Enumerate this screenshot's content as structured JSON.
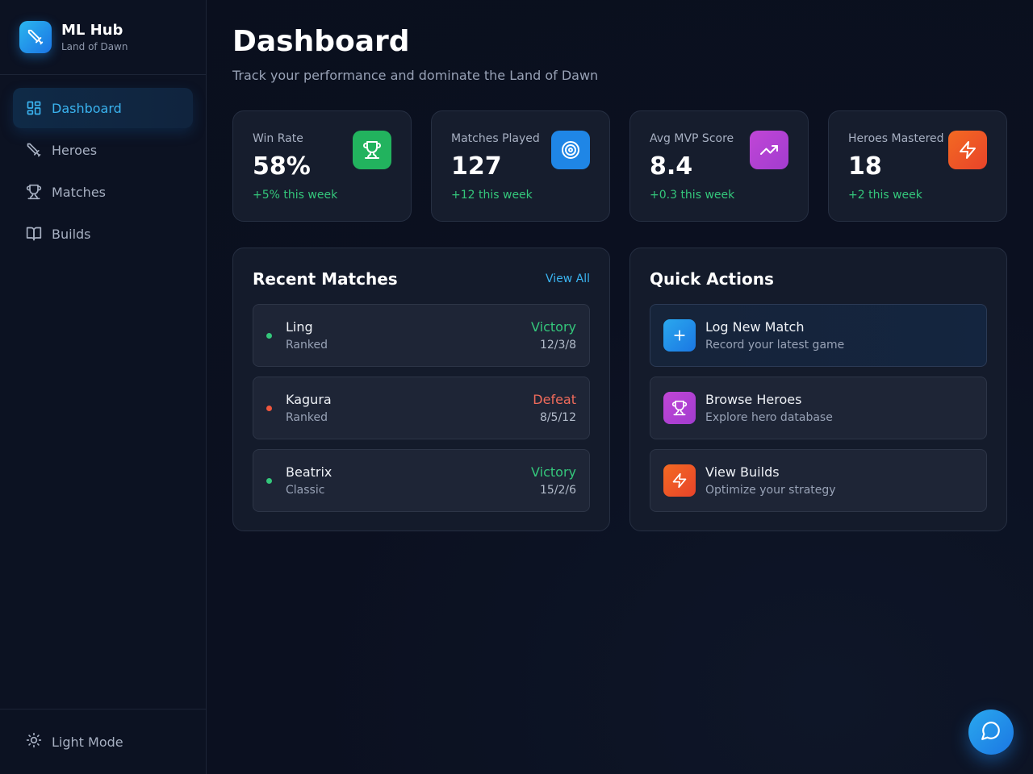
{
  "brand": {
    "name": "ML Hub",
    "subtitle": "Land of Dawn",
    "icon": "sword-icon"
  },
  "sidebar": {
    "items": [
      {
        "label": "Dashboard",
        "icon": "dashboard-grid-icon",
        "active": true
      },
      {
        "label": "Heroes",
        "icon": "sword-icon",
        "active": false
      },
      {
        "label": "Matches",
        "icon": "trophy-icon",
        "active": false
      },
      {
        "label": "Builds",
        "icon": "book-icon",
        "active": false
      }
    ],
    "theme_toggle": {
      "label": "Light Mode",
      "icon": "sun-icon"
    }
  },
  "header": {
    "title": "Dashboard",
    "subtitle": "Track your performance and dominate the Land of Dawn"
  },
  "stats": [
    {
      "label": "Win Rate",
      "value": "58%",
      "delta": "+5% this week",
      "icon": "trophy-icon",
      "color": "#22b35e"
    },
    {
      "label": "Matches Played",
      "value": "127",
      "delta": "+12 this week",
      "icon": "target-icon",
      "color": "#1f86e6"
    },
    {
      "label": "Avg MVP Score",
      "value": "8.4",
      "delta": "+0.3 this week",
      "icon": "trending-up-icon",
      "color": "#b43fd1"
    },
    {
      "label": "Heroes Mastered",
      "value": "18",
      "delta": "+2 this week",
      "icon": "lightning-icon",
      "color": "#ef5522"
    }
  ],
  "recent_matches": {
    "title": "Recent Matches",
    "view_all": "View All",
    "items": [
      {
        "hero": "Ling",
        "mode": "Ranked",
        "result": "Victory",
        "kda": "12/3/8",
        "result_color": "#34c77b"
      },
      {
        "hero": "Kagura",
        "mode": "Ranked",
        "result": "Defeat",
        "kda": "8/5/12",
        "result_color": "#f06b5b"
      },
      {
        "hero": "Beatrix",
        "mode": "Classic",
        "result": "Victory",
        "kda": "15/2/6",
        "result_color": "#34c77b"
      }
    ]
  },
  "quick_actions": {
    "title": "Quick Actions",
    "items": [
      {
        "title": "Log New Match",
        "subtitle": "Record your latest game",
        "icon": "plus-icon",
        "color": "#1f8fe8"
      },
      {
        "title": "Browse Heroes",
        "subtitle": "Explore hero database",
        "icon": "trophy-icon",
        "color": "#b43fd1"
      },
      {
        "title": "View Builds",
        "subtitle": "Optimize your strategy",
        "icon": "lightning-icon",
        "color": "#ef5522"
      }
    ]
  },
  "fab": {
    "icon": "chat-bubble-icon"
  },
  "colors": {
    "accent": "#3ab3ef",
    "victory": "#34c77b",
    "defeat": "#f06b5b",
    "background": "#0b1020"
  }
}
